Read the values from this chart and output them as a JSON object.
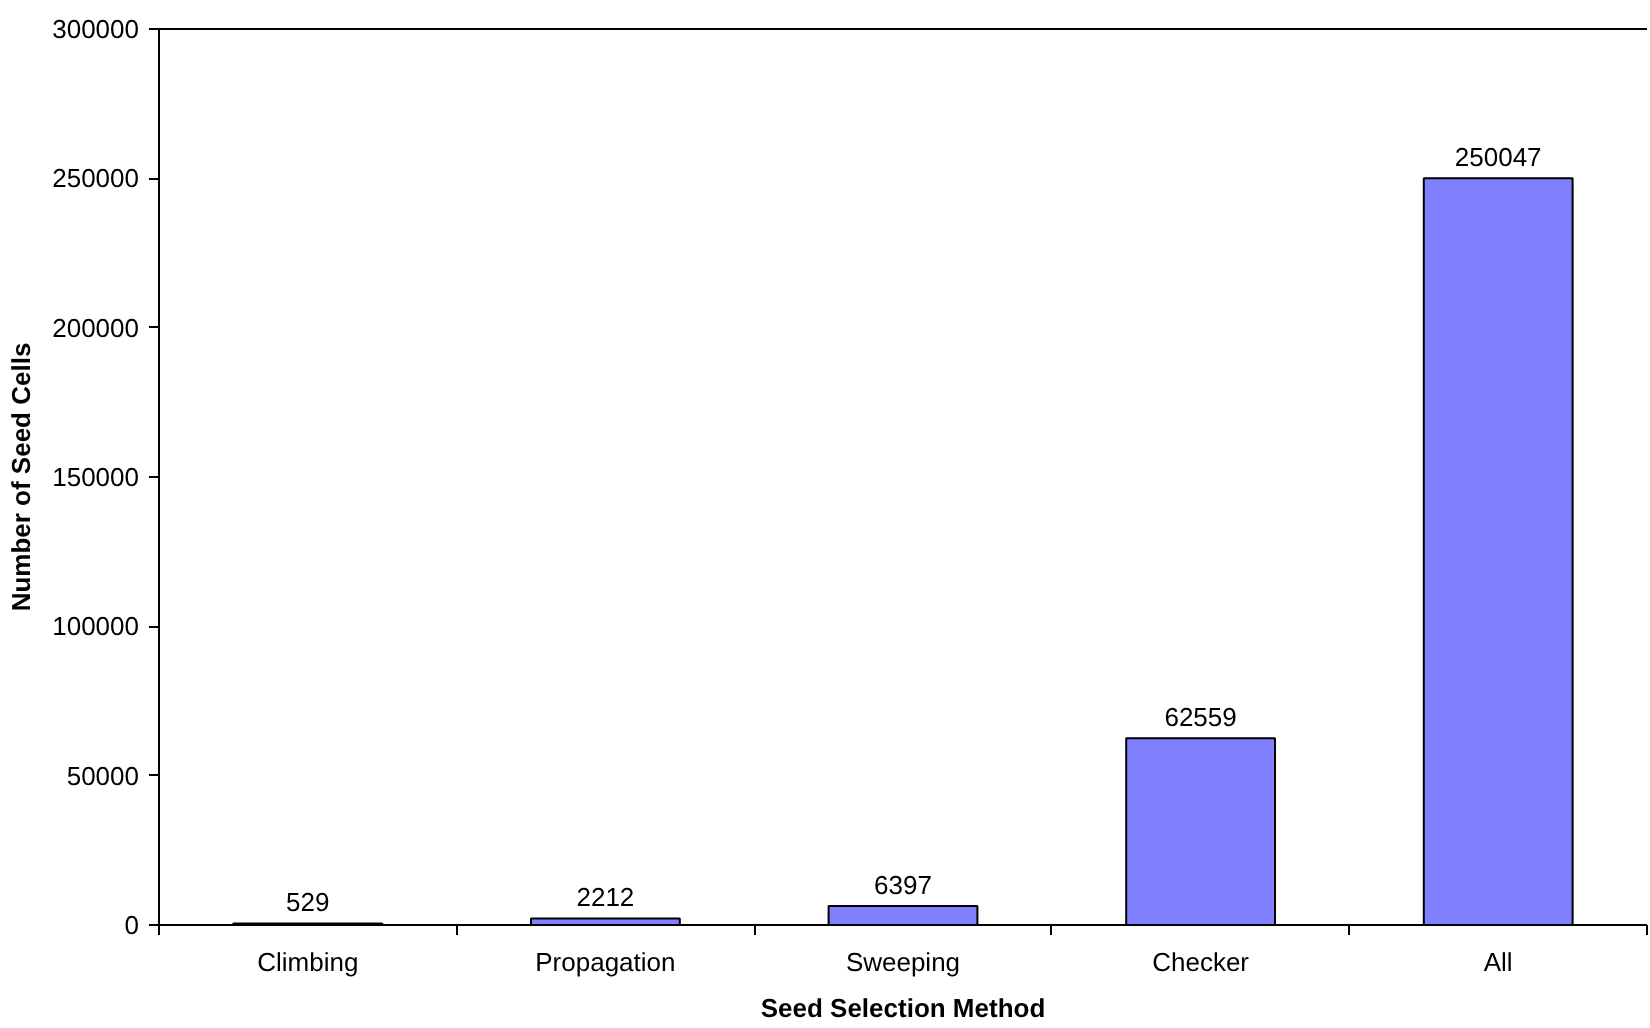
{
  "chart_data": {
    "type": "bar",
    "xlabel": "Seed Selection Method",
    "ylabel": "Number of Seed Cells",
    "categories": [
      "Climbing",
      "Propagation",
      "Sweeping",
      "Checker",
      "All"
    ],
    "values": [
      529,
      2212,
      6397,
      62559,
      250047
    ],
    "color": "#8080ff",
    "ylim": [
      0,
      300000
    ],
    "yticks": [
      0,
      50000,
      100000,
      150000,
      200000,
      250000,
      300000
    ],
    "data_labels": true,
    "grid": false
  }
}
